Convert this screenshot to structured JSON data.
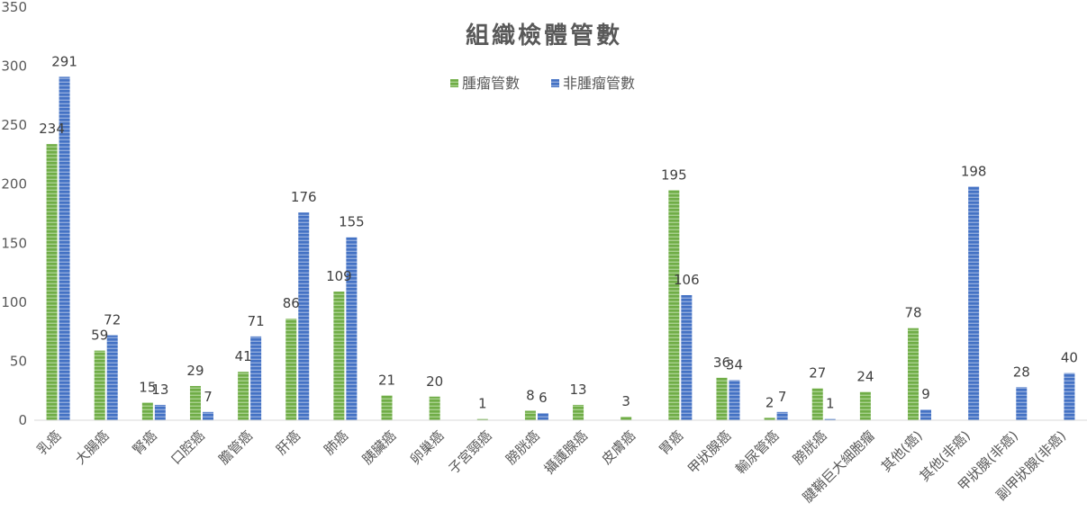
{
  "chart_data": {
    "type": "bar",
    "title": "組織檢體管數",
    "xlabel": "",
    "ylabel": "",
    "ylim": [
      0,
      350
    ],
    "yticks": [
      0,
      50,
      100,
      150,
      200,
      250,
      300,
      350
    ],
    "grid": false,
    "legend_position": "top-center",
    "categories": [
      "乳癌",
      "大腸癌",
      "腎癌",
      "口腔癌",
      "膽管癌",
      "肝癌",
      "肺癌",
      "胰臟癌",
      "卵巢癌",
      "子宮頸癌",
      "膀胱癌",
      "攝護腺癌",
      "皮膚癌",
      "胃癌",
      "甲狀腺癌",
      "輸尿管癌",
      "膀胱癌",
      "腱鞘巨大細胞瘤",
      "其他(癌)",
      "其他(非癌)",
      "甲狀腺(非癌)",
      "副甲狀腺(非癌)"
    ],
    "series": [
      {
        "name": "腫瘤管數",
        "color": "#70AD47",
        "values": [
          234,
          59,
          15,
          29,
          41,
          86,
          109,
          21,
          20,
          1,
          8,
          13,
          3,
          195,
          36,
          2,
          27,
          24,
          78,
          null,
          null,
          null
        ]
      },
      {
        "name": "非腫瘤管數",
        "color": "#4472C4",
        "values": [
          291,
          72,
          13,
          7,
          71,
          176,
          155,
          null,
          null,
          null,
          6,
          null,
          null,
          106,
          34,
          7,
          1,
          null,
          9,
          198,
          28,
          40
        ]
      }
    ]
  }
}
